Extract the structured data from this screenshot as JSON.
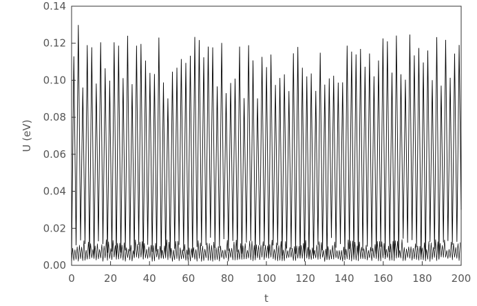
{
  "chart_data": {
    "type": "line",
    "title": "",
    "xlabel": "t",
    "ylabel": "U  (eV)",
    "xlim": [
      0,
      200
    ],
    "ylim": [
      0,
      0.14
    ],
    "x_ticks": [
      0,
      20,
      40,
      60,
      80,
      100,
      120,
      140,
      160,
      180,
      200
    ],
    "x_tick_labels": [
      "0",
      "20",
      "40",
      "60",
      "80",
      "100",
      "120",
      "140",
      "160",
      "180",
      "200"
    ],
    "y_ticks": [
      0.0,
      0.02,
      0.04,
      0.06,
      0.08,
      0.1,
      0.12,
      0.14
    ],
    "y_tick_labels": [
      "0.00",
      "0.02",
      "0.04",
      "0.06",
      "0.08",
      "0.10",
      "0.12",
      "0.14"
    ],
    "grid": false,
    "legend": "none",
    "line_color": "#000000",
    "series": [
      {
        "description_of_shape": "dense oscillation with period ~2.3",
        "period": 2.3,
        "peak_max": 0.13,
        "peak_typical": [
          0.09,
          0.125
        ],
        "trough_min": 0.002,
        "trough_typical": [
          0.002,
          0.015
        ]
      },
      {
        "description_of_shape": "fast small-amplitude oscillation near baseline",
        "period": 1.15,
        "range": [
          0.002,
          0.014
        ]
      }
    ]
  }
}
